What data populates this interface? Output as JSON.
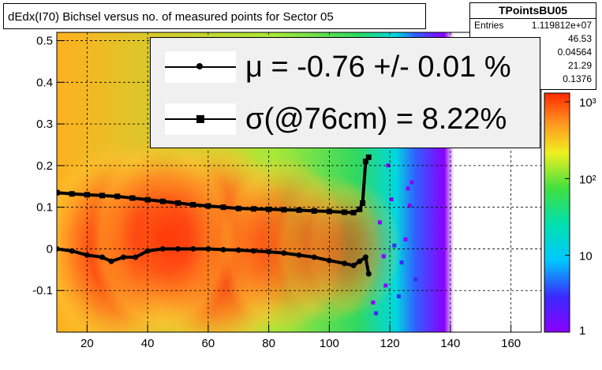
{
  "title": "dEdx(I70) Bichsel versus no. of measured points for Sector 05",
  "stats": {
    "name": "TPointsBU05",
    "rows": [
      {
        "key": "Entries",
        "value": "1.119812e+07"
      },
      {
        "key": "",
        "value": "46.53"
      },
      {
        "key": "",
        "value": "0.04564"
      },
      {
        "key": "",
        "value": "21.29"
      },
      {
        "key": "",
        "value": "0.1376"
      }
    ]
  },
  "legend": {
    "mu_text": "μ  = -0.76 +/-  0.01 %",
    "sigma_text": "σ(@76cm) =  8.22%"
  },
  "colors": {
    "frame": "#000000",
    "legend_bg": "#f0f0f0",
    "marker": "#000000"
  },
  "chart_data": {
    "type": "heatmap",
    "xlim": [
      10,
      170
    ],
    "ylim": [
      -0.2,
      0.52
    ],
    "x_ticks": [
      20,
      40,
      60,
      80,
      100,
      120,
      140,
      160
    ],
    "y_ticks": [
      -0.1,
      0,
      0.1,
      0.2,
      0.3,
      0.4,
      0.5
    ],
    "y_tick_labels": [
      "-0.1",
      "0",
      "0.1",
      "0.2",
      "0.3",
      "0.4",
      "0.5"
    ],
    "grid": true,
    "colorbar": {
      "scale": "log",
      "min": 1,
      "max": 1300,
      "tick_labels": [
        "1",
        "10",
        "10²",
        "10³"
      ]
    },
    "density_regions": [
      {
        "center": [
          30,
          0.0
        ],
        "level": 0.85
      },
      {
        "center": [
          62,
          0.0
        ],
        "level": 0.9
      },
      {
        "center": [
          45,
          0.03
        ],
        "level": 0.75
      },
      {
        "center": [
          85,
          0.01
        ],
        "level": 0.6
      },
      {
        "center": [
          100,
          0.0
        ],
        "level": 0.4
      },
      {
        "center": [
          108,
          0.0
        ],
        "level": 0.3
      }
    ],
    "series": [
      {
        "name": "mean",
        "marker": "circle",
        "x": [
          10,
          15,
          20,
          25,
          28,
          32,
          36,
          40,
          45,
          50,
          55,
          60,
          65,
          70,
          75,
          80,
          85,
          90,
          95,
          100,
          105,
          108,
          110,
          112,
          113
        ],
        "y": [
          0.0,
          -0.005,
          -0.015,
          -0.02,
          -0.03,
          -0.02,
          -0.02,
          -0.005,
          0.0,
          0.0,
          0.0,
          0.0,
          -0.002,
          -0.003,
          -0.005,
          -0.007,
          -0.01,
          -0.015,
          -0.02,
          -0.028,
          -0.035,
          -0.04,
          -0.03,
          -0.02,
          -0.06
        ]
      },
      {
        "name": "sigma",
        "marker": "square",
        "x": [
          10,
          15,
          20,
          25,
          30,
          35,
          40,
          45,
          50,
          55,
          60,
          65,
          70,
          75,
          80,
          85,
          90,
          95,
          100,
          105,
          108,
          110,
          111,
          112,
          113
        ],
        "y": [
          0.135,
          0.132,
          0.13,
          0.128,
          0.126,
          0.122,
          0.118,
          0.114,
          0.11,
          0.106,
          0.103,
          0.1,
          0.097,
          0.096,
          0.095,
          0.094,
          0.093,
          0.091,
          0.09,
          0.088,
          0.087,
          0.095,
          0.11,
          0.21,
          0.22
        ]
      }
    ]
  }
}
